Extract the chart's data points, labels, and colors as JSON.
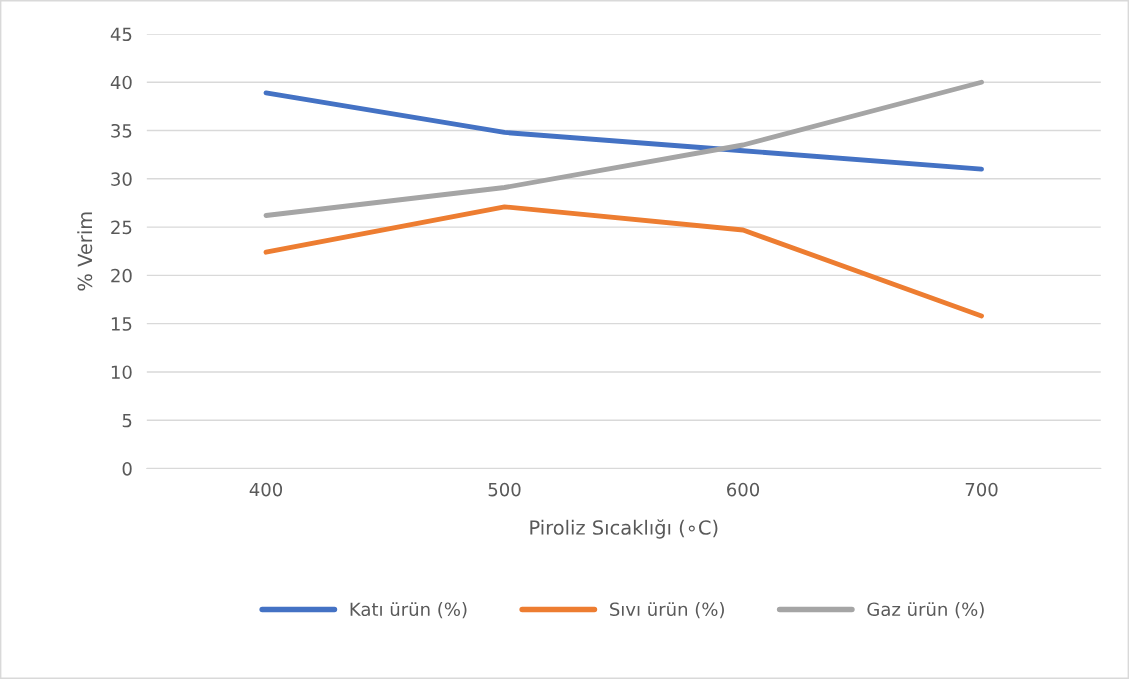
{
  "chart_data": {
    "type": "line",
    "xlabel": "Piroliz Sıcaklığı (∘C)",
    "ylabel": "% Verim",
    "categories": [
      "400",
      "500",
      "600",
      "700"
    ],
    "series": [
      {
        "name": "Katı ürün (%)",
        "color": "#4472c4",
        "values": [
          38.9,
          34.8,
          32.9,
          31.0
        ]
      },
      {
        "name": "Sıvı ürün (%)",
        "color": "#ed7d31",
        "values": [
          22.4,
          27.1,
          24.7,
          15.8
        ]
      },
      {
        "name": "Gaz ürün (%)",
        "color": "#a5a5a5",
        "values": [
          26.2,
          29.1,
          33.5,
          40.0
        ]
      }
    ],
    "ylim": [
      0,
      45
    ],
    "yticks": [
      0,
      5,
      10,
      15,
      20,
      25,
      30,
      35,
      40,
      45
    ],
    "grid": "y",
    "legend": "bottom",
    "marker": "none",
    "line_style": "solid"
  }
}
